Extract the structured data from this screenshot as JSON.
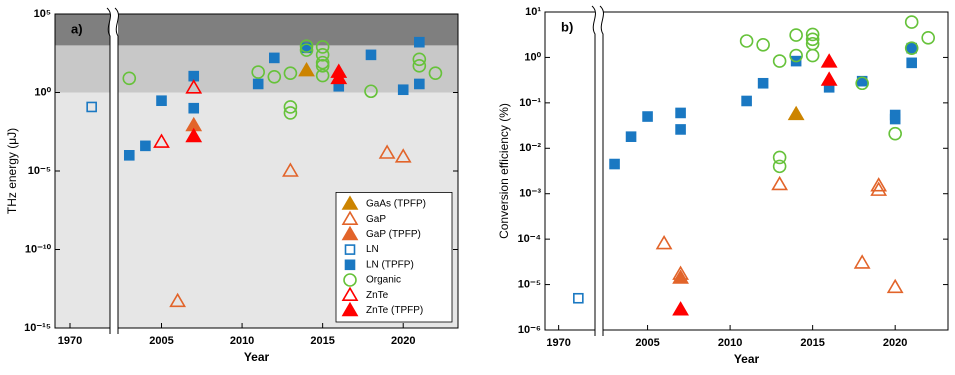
{
  "chart_data": [
    {
      "type": "scatter",
      "label": "a)",
      "xlabel": "Year",
      "ylabel": "THz energy (μJ)",
      "log_y": true,
      "xlim": [
        1969.1,
        2023.4
      ],
      "x_break": [
        1972.4,
        2002.3
      ],
      "xticks": [
        1970,
        2005,
        2010,
        2015,
        2020
      ],
      "ylim": [
        1e-15,
        100000
      ],
      "yticks": [
        {
          "value": 1e-15,
          "label": "10⁻¹⁵"
        },
        {
          "value": 1e-10,
          "label": "10⁻¹⁰"
        },
        {
          "value": 1e-05,
          "label": "10⁻⁵"
        },
        {
          "value": 1,
          "label": "10⁰"
        },
        {
          "value": 100000,
          "label": "10⁵"
        }
      ],
      "bands": [
        {
          "range": [
            1e-15,
            1
          ],
          "color": "#e6e6e6"
        },
        {
          "range": [
            1,
            1000
          ],
          "color": "#c8c8c8"
        },
        {
          "range": [
            1000,
            100000
          ],
          "color": "#7f7f7f"
        }
      ],
      "legend": "lower right",
      "series": [
        {
          "name": "GaAs (TPFP)",
          "marker": "triangle",
          "filled": true,
          "color": "#cc8400",
          "x": [
            2014
          ],
          "values": [
            25
          ]
        },
        {
          "name": "GaP",
          "marker": "triangle",
          "filled": false,
          "color": "#e2642a",
          "x": [
            2006,
            2013,
            2019,
            2020
          ],
          "values": [
            5e-14,
            1e-05,
            0.00014,
            8e-05
          ]
        },
        {
          "name": "GaP (TPFP)",
          "marker": "triangle",
          "filled": true,
          "color": "#e2642a",
          "x": [
            2007
          ],
          "values": [
            0.008
          ]
        },
        {
          "name": "LN",
          "marker": "square",
          "filled": false,
          "color": "#1a78c2",
          "x": [
            1971.3
          ],
          "values": [
            0.12
          ]
        },
        {
          "name": "LN (TPFP)",
          "marker": "square",
          "filled": true,
          "color": "#1a78c2",
          "x": [
            2003,
            2004,
            2005,
            2007,
            2007,
            2011,
            2012,
            2014,
            2016,
            2018,
            2020,
            2021,
            2021
          ],
          "values": [
            0.0001,
            0.0004,
            0.3,
            11,
            0.1,
            3.5,
            160,
            700,
            2.5,
            250,
            1.5,
            1600,
            3.5
          ]
        },
        {
          "name": "Organic",
          "marker": "circle",
          "filled": false,
          "color": "#66c23a",
          "x": [
            2003,
            2011,
            2012,
            2013,
            2013,
            2013,
            2014,
            2014,
            2015,
            2015,
            2015,
            2015,
            2015,
            2018,
            2021,
            2021,
            2022
          ],
          "values": [
            8,
            20,
            10,
            17,
            0.12,
            0.05,
            900,
            500,
            800,
            250,
            80,
            50,
            12,
            1.2,
            130,
            50,
            17
          ]
        },
        {
          "name": "ZnTe",
          "marker": "triangle",
          "filled": false,
          "color": "#ff0000",
          "x": [
            2005,
            2007
          ],
          "values": [
            0.0007,
            2
          ]
        },
        {
          "name": "ZnTe (TPFP)",
          "marker": "triangle",
          "filled": true,
          "color": "#ff0000",
          "x": [
            2007,
            2016,
            2016
          ],
          "values": [
            0.0016,
            20,
            8
          ]
        }
      ]
    },
    {
      "type": "scatter",
      "label": "b)",
      "xlabel": "Year",
      "ylabel": "Conversion efficiency (%)",
      "log_y": true,
      "xlim": [
        1969.1,
        2023.2
      ],
      "x_break": [
        1972.4,
        2002.3
      ],
      "xticks": [
        1970,
        2005,
        2010,
        2015,
        2020
      ],
      "ylim": [
        1e-06,
        10
      ],
      "yticks": [
        {
          "value": 1e-06,
          "label": "10⁻⁶"
        },
        {
          "value": 1e-05,
          "label": "10⁻⁵"
        },
        {
          "value": 0.0001,
          "label": "10⁻⁴"
        },
        {
          "value": 0.001,
          "label": "10⁻³"
        },
        {
          "value": 0.01,
          "label": "10⁻²"
        },
        {
          "value": 0.1,
          "label": "10⁻¹"
        },
        {
          "value": 1,
          "label": "10⁰"
        },
        {
          "value": 10,
          "label": "10¹"
        }
      ],
      "series": [
        {
          "marker": "triangle",
          "filled": true,
          "color": "#cc8400",
          "x": [
            2014
          ],
          "values": [
            0.056
          ]
        },
        {
          "marker": "triangle",
          "filled": false,
          "color": "#e2642a",
          "x": [
            2006,
            2007,
            2013,
            2018,
            2019,
            2019,
            2020
          ],
          "values": [
            8e-05,
            1.7e-05,
            0.0016,
            3e-05,
            0.0015,
            0.0012,
            8.7e-06
          ]
        },
        {
          "marker": "triangle",
          "filled": true,
          "color": "#e2642a",
          "x": [
            2007
          ],
          "values": [
            1.4e-05
          ]
        },
        {
          "marker": "square",
          "filled": false,
          "color": "#1a78c2",
          "x": [
            1971.3
          ],
          "values": [
            5e-06
          ]
        },
        {
          "marker": "square",
          "filled": true,
          "color": "#1a78c2",
          "x": [
            2003,
            2004,
            2005,
            2007,
            2007,
            2011,
            2012,
            2014,
            2016,
            2018,
            2020,
            2020,
            2021,
            2021
          ],
          "values": [
            0.0045,
            0.018,
            0.05,
            0.06,
            0.026,
            0.11,
            0.27,
            0.83,
            0.22,
            0.3,
            0.054,
            0.044,
            1.6,
            0.76
          ]
        },
        {
          "marker": "circle",
          "filled": false,
          "color": "#66c23a",
          "x": [
            2011,
            2012,
            2013,
            2013,
            2013,
            2014,
            2014,
            2015,
            2015,
            2015,
            2015,
            2018,
            2020,
            2021,
            2021,
            2022
          ],
          "values": [
            2.3,
            1.9,
            0.83,
            0.0063,
            0.004,
            3.1,
            1.1,
            3.2,
            2.5,
            2,
            1.1,
            0.27,
            0.021,
            6,
            1.6,
            2.7
          ]
        },
        {
          "marker": "triangle",
          "filled": true,
          "color": "#ff0000",
          "x": [
            2007,
            2016,
            2016
          ],
          "values": [
            2.8e-06,
            0.8,
            0.32
          ]
        }
      ]
    }
  ]
}
